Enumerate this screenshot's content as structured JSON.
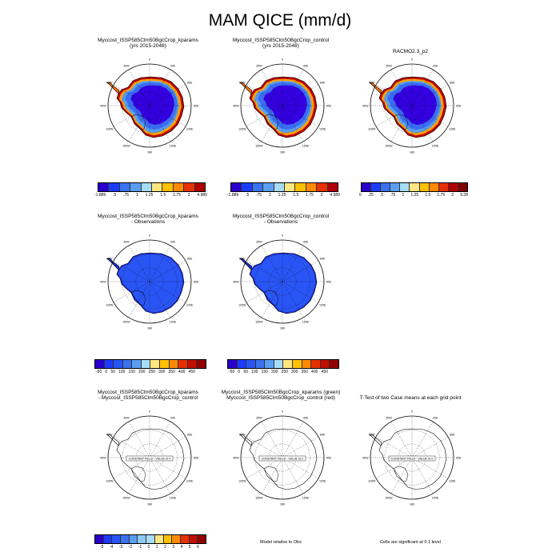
{
  "title": "MAM QICE (mm/d)",
  "panels": [
    {
      "id": "p1",
      "title": "Myccost_ISSP585Clm50BgcCrop_kparams\n(yrs 2015-2048)",
      "style": "field",
      "palette": "warm"
    },
    {
      "id": "p2",
      "title": "Myccost_ISSP585Clm50BgcCrop_control\n(yrs 2015-2048)",
      "style": "field",
      "palette": "warm"
    },
    {
      "id": "p3",
      "title": "RACMO2.3_p2",
      "style": "field",
      "palette": "warm"
    },
    {
      "id": "p4",
      "title": "Myccost_ISSP585Clm50BgcCrop_kparams\n- Observations",
      "style": "diff",
      "palette": "blue"
    },
    {
      "id": "p5",
      "title": "Myccost_ISSP585Clm50BgcCrop_control\n- Observations",
      "style": "diff",
      "palette": "blue"
    },
    {
      "id": "p6",
      "title": "Myccost_ISSP585Clm50BgcCrop_kparams\n- Myccost_ISSP585Clm50BgcCrop_control",
      "style": "empty",
      "constant_label": "CONSTANT FIELD - VALUE IS 0"
    },
    {
      "id": "p7",
      "title": "Myccost_ISSP585Clm50BgcCrop_kparams (green)\nMyccost_ISSP585Clm50BgcCrop_control (red)",
      "style": "empty",
      "constant_label": "CONSTANT FIELD - VALUE IS 0"
    },
    {
      "id": "p8",
      "title": "T-Test of two Case means at each grid point",
      "style": "empty",
      "constant_label": "CONSTANT FIELD - VALUE IS 0"
    }
  ],
  "lon_labels": [
    "0",
    "30E",
    "60E",
    "90E",
    "120E",
    "150E",
    "180",
    "150W",
    "120W",
    "90W",
    "60W",
    "30W"
  ],
  "colorbars": [
    {
      "id": "cb1",
      "labels": [
        "-1.889",
        ".5",
        ".75",
        "1",
        "1.25",
        "1.5",
        "1.75",
        "2",
        "4.989"
      ],
      "colors": [
        "#2a00cc",
        "#1b3cff",
        "#3a72f0",
        "#5a9ef2",
        "#a6dcf6",
        "#ffe680",
        "#ffc000",
        "#ff8a00",
        "#e63000",
        "#b00000"
      ]
    },
    {
      "id": "cb2",
      "labels": [
        "-1.889",
        ".5",
        ".75",
        "1",
        "1.25",
        "1.5",
        "1.75",
        "2",
        "4.989"
      ],
      "colors": [
        "#2a00cc",
        "#1b3cff",
        "#3a72f0",
        "#5a9ef2",
        "#a6dcf6",
        "#ffe680",
        "#ffc000",
        "#ff8a00",
        "#e63000",
        "#b00000"
      ]
    },
    {
      "id": "cb3",
      "labels": [
        "0",
        ".25",
        ".5",
        ".75",
        "1",
        "1.25",
        "1.5",
        "1.75",
        "2",
        "9.28"
      ],
      "colors": [
        "#2a00cc",
        "#1b3cff",
        "#3a72f0",
        "#5a9ef2",
        "#a6dcf6",
        "#ffe680",
        "#ffc000",
        "#ff8a00",
        "#e63000",
        "#b00000",
        "#800000"
      ]
    },
    {
      "id": "cb4",
      "labels": [
        "-50",
        "0",
        "50",
        "100",
        "150",
        "200",
        "250",
        "300",
        "350",
        "400",
        "450"
      ],
      "colors": [
        "#2a00cc",
        "#1b3cff",
        "#2a55f5",
        "#3a72f0",
        "#5a9ef2",
        "#a6dcf6",
        "#ffe680",
        "#ffc000",
        "#ff8a00",
        "#e63000",
        "#c01000",
        "#900000"
      ]
    },
    {
      "id": "cb5",
      "labels": [
        "-50",
        "0",
        "50",
        "100",
        "150",
        "200",
        "250",
        "300",
        "350",
        "400",
        "450"
      ],
      "colors": [
        "#2a00cc",
        "#1b3cff",
        "#2a55f5",
        "#3a72f0",
        "#5a9ef2",
        "#a6dcf6",
        "#ffe680",
        "#ffc000",
        "#ff8a00",
        "#e63000",
        "#c01000",
        "#900000"
      ]
    },
    {
      "id": "cb6",
      "labels": [
        "-5",
        "-4",
        "-3",
        "-2",
        "-1",
        "0",
        "1",
        "2",
        "3",
        "4",
        "5",
        "6"
      ],
      "colors": [
        "#2a00cc",
        "#1b3cff",
        "#2a55f5",
        "#3a72f0",
        "#5a9ef2",
        "#8fc8f4",
        "#a6dcf6",
        "#ffe680",
        "#ffc000",
        "#ff8a00",
        "#e63000",
        "#c01000",
        "#900000"
      ]
    }
  ],
  "notes": {
    "model_relative": "Model relative to Obs",
    "significance": "Cells are significant at 0.1 level"
  }
}
